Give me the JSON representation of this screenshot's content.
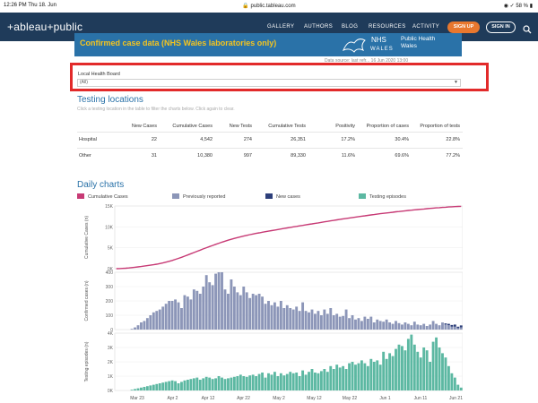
{
  "status": {
    "time_date": "12:26 PM   Thu 18. Jun",
    "url": "public.tableau.com",
    "battery": "58 %"
  },
  "nav": {
    "logo": "+ableau+public",
    "items": [
      "GALLERY",
      "AUTHORS",
      "BLOG",
      "RESOURCES",
      "ACTIVITY"
    ],
    "signup": "SIGN UP",
    "signin": "SIGN IN"
  },
  "banner": {
    "title": "Confirmed case data (NHS Wales laboratories only)",
    "nhs": "NHS",
    "wales": "WALES",
    "phw_line1": "Public Health",
    "phw_line2": "Wales",
    "datasource": "Data source: last refr...    16 Jun 2020 13:00"
  },
  "filter": {
    "label": "Local Health Board",
    "value": "(All)"
  },
  "testing": {
    "title": "Testing locations",
    "subtitle": "Click a testing location in the table to filter the charts below. Click again to clear.",
    "columns": [
      "",
      "New Cases",
      "Cumulative Cases",
      "New Tests",
      "Cumulative Tests",
      "Positivity",
      "Proportion of cases",
      "Proportion of tests"
    ],
    "rows": [
      [
        "Hospital",
        "22",
        "4,542",
        "274",
        "26,351",
        "17.2%",
        "30.4%",
        "22.8%"
      ],
      [
        "Other",
        "31",
        "10,380",
        "997",
        "89,330",
        "11.6%",
        "69.6%",
        "77.2%"
      ]
    ]
  },
  "daily": {
    "title": "Daily charts",
    "legend": [
      {
        "label": "Cumulative Cases",
        "color": "#c73a75"
      },
      {
        "label": "Previously reported",
        "color": "#8c96b8"
      },
      {
        "label": "New cases",
        "color": "#2d3f7a"
      },
      {
        "label": "Testing episodes",
        "color": "#5cb8a2"
      }
    ]
  },
  "chart_data": [
    {
      "type": "line",
      "ylabel": "Cumulative Cases (n)",
      "ylim": [
        0,
        15000
      ],
      "yticks": [
        "0K",
        "5K",
        "10K",
        "15K"
      ],
      "x_start": 0,
      "values": [
        0,
        20,
        60,
        110,
        170,
        250,
        340,
        430,
        520,
        620,
        720,
        830,
        950,
        1080,
        1220,
        1380,
        1560,
        1760,
        1980,
        2220,
        2470,
        2730,
        3000,
        3280,
        3570,
        3860,
        4150,
        4440,
        4730,
        5010,
        5290,
        5560,
        5830,
        6090,
        6340,
        6580,
        6810,
        7030,
        7240,
        7440,
        7630,
        7810,
        7980,
        8140,
        8290,
        8440,
        8580,
        8720,
        8850,
        8980,
        9110,
        9240,
        9370,
        9500,
        9630,
        9760,
        9880,
        10000,
        10120,
        10240,
        10360,
        10480,
        10600,
        10720,
        10840,
        10960,
        11080,
        11200,
        11320,
        11440,
        11560,
        11680,
        11800,
        11910,
        12020,
        12130,
        12240,
        12350,
        12450,
        12550,
        12650,
        12750,
        12850,
        12950,
        13050,
        13150,
        13240,
        13330,
        13420,
        13510,
        13600,
        13680,
        13760,
        13840,
        13920,
        14000,
        14070,
        14140,
        14210,
        14280,
        14350,
        14420,
        14480,
        14540,
        14600,
        14660,
        14710,
        14760,
        14810,
        14860,
        14900,
        14920
      ]
    },
    {
      "type": "bar",
      "ylabel": "Confirmed cases (n)",
      "ylim": [
        0,
        400
      ],
      "yticks": [
        "0",
        "100",
        "200",
        "300",
        "400"
      ],
      "values": [
        0,
        0,
        0,
        0,
        0,
        5,
        15,
        30,
        50,
        60,
        80,
        100,
        120,
        130,
        140,
        160,
        180,
        200,
        200,
        210,
        190,
        150,
        240,
        230,
        210,
        280,
        270,
        250,
        300,
        380,
        330,
        310,
        390,
        400,
        400,
        280,
        250,
        350,
        300,
        260,
        240,
        300,
        260,
        220,
        250,
        240,
        250,
        230,
        180,
        200,
        170,
        190,
        160,
        200,
        150,
        170,
        150,
        140,
        160,
        130,
        190,
        130,
        120,
        140,
        110,
        130,
        100,
        140,
        110,
        150,
        100,
        110,
        90,
        95,
        140,
        80,
        100,
        70,
        80,
        60,
        90,
        75,
        90,
        50,
        70,
        60,
        55,
        70,
        50,
        40,
        60,
        45,
        35,
        50,
        40,
        30,
        55,
        35,
        30,
        40,
        25,
        35,
        60,
        40,
        30,
        45,
        35,
        30,
        20,
        20,
        10,
        15
      ],
      "new_cases": [
        0,
        0,
        0,
        0,
        0,
        0,
        0,
        0,
        0,
        0,
        0,
        0,
        0,
        0,
        0,
        0,
        0,
        0,
        0,
        0,
        0,
        0,
        0,
        0,
        0,
        0,
        0,
        0,
        0,
        0,
        0,
        0,
        0,
        0,
        0,
        0,
        0,
        0,
        0,
        0,
        0,
        0,
        0,
        0,
        0,
        0,
        0,
        0,
        0,
        0,
        0,
        0,
        0,
        0,
        0,
        0,
        0,
        0,
        0,
        0,
        0,
        0,
        0,
        0,
        0,
        0,
        0,
        0,
        0,
        0,
        0,
        0,
        0,
        0,
        0,
        0,
        0,
        0,
        0,
        0,
        0,
        0,
        0,
        0,
        0,
        0,
        0,
        0,
        0,
        0,
        0,
        0,
        0,
        0,
        0,
        0,
        0,
        0,
        0,
        0,
        0,
        0,
        0,
        0,
        0,
        3,
        8,
        10,
        12,
        15,
        10,
        14
      ]
    },
    {
      "type": "bar",
      "ylabel": "Testing episodes (n)",
      "ylim": [
        0,
        4000
      ],
      "yticks": [
        "0K",
        "1K",
        "2K",
        "3K",
        "4K"
      ],
      "values": [
        0,
        0,
        0,
        0,
        0,
        50,
        100,
        150,
        200,
        250,
        300,
        350,
        400,
        450,
        500,
        550,
        600,
        650,
        700,
        650,
        500,
        600,
        700,
        750,
        800,
        850,
        900,
        750,
        850,
        950,
        900,
        800,
        850,
        1000,
        900,
        800,
        850,
        900,
        950,
        1000,
        1100,
        1000,
        950,
        1050,
        1100,
        1000,
        1150,
        1250,
        900,
        1200,
        1100,
        1300,
        1000,
        1200,
        1050,
        1150,
        1300,
        1200,
        1250,
        1000,
        1400,
        1100,
        1300,
        1500,
        1250,
        1200,
        1350,
        1500,
        1300,
        1700,
        1500,
        1800,
        1600,
        1700,
        1500,
        1900,
        2000,
        1800,
        1900,
        2100,
        1900,
        1700,
        2200,
        2000,
        2100,
        1800,
        2700,
        2200,
        2600,
        2400,
        2900,
        3200,
        3100,
        2800,
        3600,
        3900,
        3200,
        2700,
        2300,
        3000,
        2800,
        2000,
        3400,
        3700,
        3000,
        2600,
        2300,
        1700,
        1200,
        900,
        400,
        200
      ],
      "xticks": [
        "Mar 23",
        "Apr 2",
        "Apr 12",
        "Apr 22",
        "May 2",
        "May 12",
        "May 22",
        "Jun 1",
        "Jun 11",
        "Jun 21"
      ]
    }
  ]
}
